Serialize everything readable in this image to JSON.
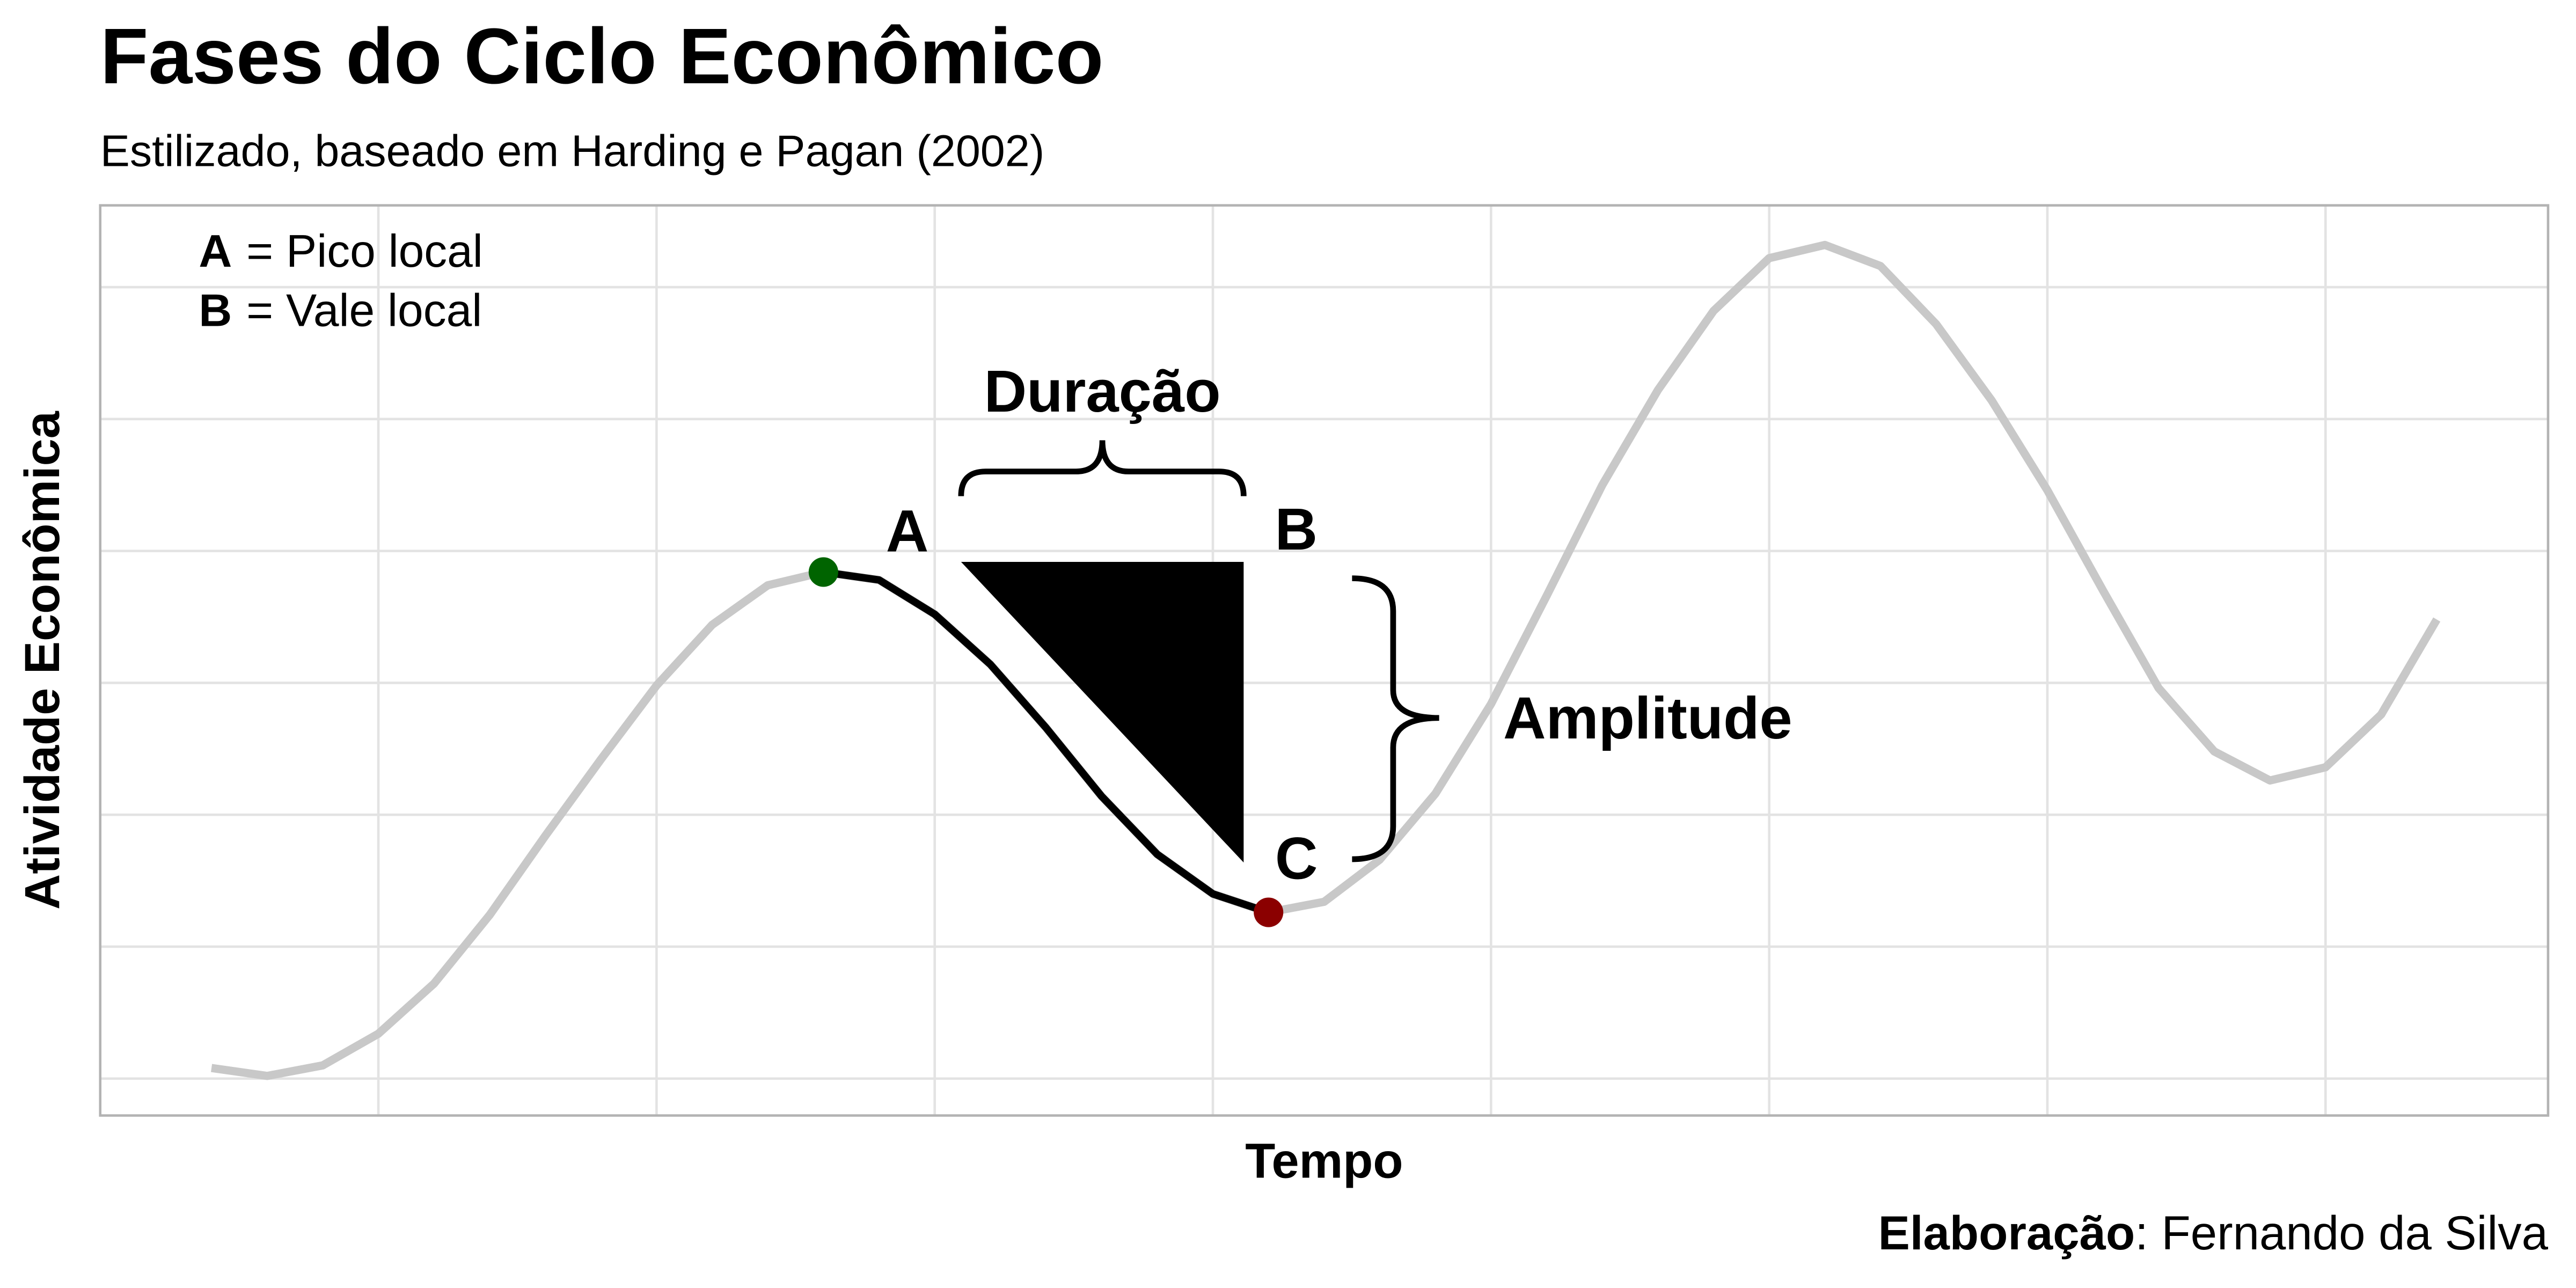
{
  "chart_data": {
    "type": "line",
    "title": "Fases do Ciclo Econômico",
    "subtitle": "Estilizado, baseado em Harding e Pagan (2002)",
    "x_label": "Tempo",
    "y_label": "Atividade Econômica",
    "caption": {
      "bold": "Elaboração",
      "text": ": Fernando da Silva"
    },
    "x": [
      1,
      2,
      3,
      4,
      5,
      6,
      7,
      8,
      9,
      10,
      11,
      12,
      13,
      14,
      15,
      16,
      17,
      18,
      19,
      20,
      21,
      22,
      23,
      24,
      25,
      26,
      27,
      28,
      29,
      30,
      31,
      32,
      33,
      34,
      35,
      36,
      37,
      38,
      39,
      40,
      41
    ],
    "series": [
      {
        "color": "#c8c8c8",
        "values": [
          -1.46,
          -1.49,
          -1.45,
          -1.33,
          -1.14,
          -0.88,
          -0.58,
          -0.29,
          -0.01,
          0.22,
          0.37,
          0.42,
          0.39,
          0.26,
          0.07,
          -0.17,
          -0.43,
          -0.65,
          -0.8,
          -0.87,
          -0.83,
          -0.67,
          -0.42,
          -0.08,
          0.33,
          0.75,
          1.11,
          1.41,
          1.61,
          1.66,
          1.58,
          1.36,
          1.07,
          0.73,
          0.35,
          -0.02,
          -0.26,
          -0.37,
          -0.32,
          -0.12,
          0.24
        ]
      }
    ],
    "highlight_color": "#000000",
    "markers": [
      {
        "label": "A",
        "x": 12,
        "color": "#006400"
      },
      {
        "label": "C",
        "x": 20,
        "color": "#8b0000"
      }
    ],
    "annotations": {
      "duration": "Duração",
      "amplitude": "Amplitude",
      "b": "B"
    },
    "legend": [
      {
        "key": "A",
        "color": "#006400",
        "text": "= Pico local"
      },
      {
        "key": "B",
        "color": "#8b0000",
        "text": "= Vale local"
      }
    ],
    "xlim": [
      -1,
      43
    ],
    "ylim": [
      -1.64,
      1.81
    ],
    "xticks": [
      4,
      9,
      14,
      19,
      24,
      29,
      34,
      39
    ],
    "yticks": [
      -1.5,
      -1,
      -0.5,
      0,
      0.5,
      1,
      1.5
    ],
    "grid": true
  }
}
